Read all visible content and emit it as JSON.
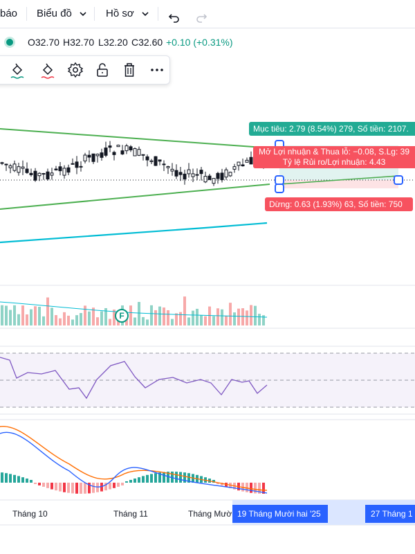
{
  "topbar": {
    "menu_partial": "báo",
    "chart_menu": "Biểu đồ",
    "profile_menu": "Hồ sơ"
  },
  "ohlc": {
    "open": "O32.70",
    "high": "H32.70",
    "low": "L32.20",
    "close": "C32.60",
    "change": "+0.10 (+0.31%)"
  },
  "position_tool": {
    "target_label": "Mục tiêu: 2.79 (8.54%) 279, Số tiền: 2107.",
    "pnl_label": "Mở Lợi nhuận & Thua lỗ: −0.08, S.Lg: 39",
    "ratio_label": "Tỷ lệ Rủi ro/Lợi nhuận: 4.43",
    "stop_label": "Dừng: 0.63 (1.93%) 63, Số tiền: 750"
  },
  "event_marker": "F",
  "x_axis": {
    "labels": [
      "Tháng 10",
      "Tháng 11",
      "Tháng Mười"
    ],
    "highlight_left": "19 Tháng Mười hai '25",
    "highlight_right": "27 Tháng 1"
  },
  "colors": {
    "up": "#089981",
    "down": "#f23645",
    "candle": "#131722",
    "trendline": "#4caf50",
    "ma": "#00bcd4",
    "rsi": "#7e57c2",
    "macd": "#2962ff",
    "signal": "#ff6d00",
    "accent": "#2962ff"
  }
}
